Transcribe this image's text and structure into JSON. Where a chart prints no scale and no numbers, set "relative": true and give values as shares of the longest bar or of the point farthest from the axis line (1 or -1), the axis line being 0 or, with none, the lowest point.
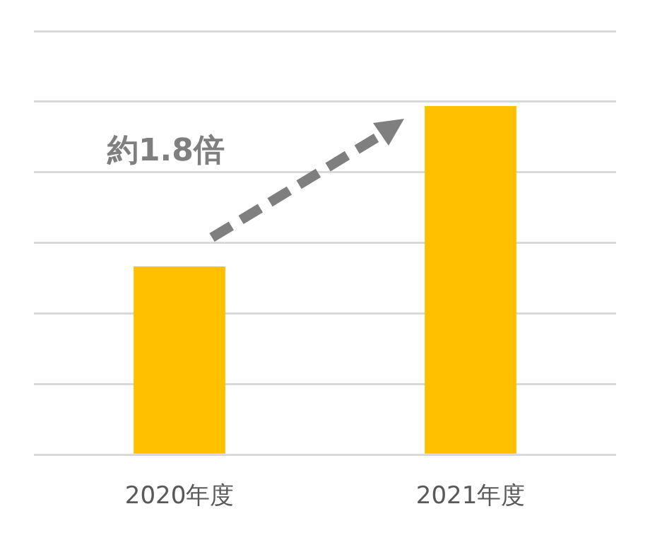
{
  "chart_data": {
    "type": "bar",
    "relative": true,
    "categories": [
      "2020年度",
      "2021年度"
    ],
    "values": [
      0.54,
      1
    ],
    "color": "#ffc000",
    "grid": "y",
    "legend": false,
    "annotations": [
      "約1.8倍"
    ]
  }
}
